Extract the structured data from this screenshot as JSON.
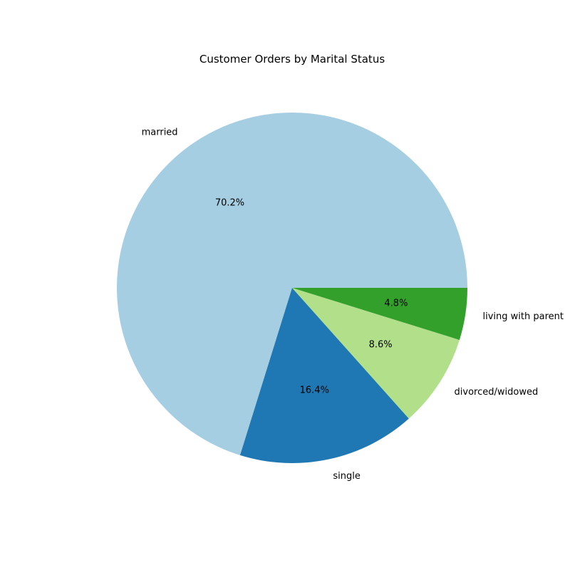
{
  "chart_data": {
    "type": "pie",
    "title": "Customer Orders by Marital Status",
    "slices": [
      {
        "label": "married",
        "value": 70.2,
        "pct_label": "70.2%",
        "color": "#a6cee3"
      },
      {
        "label": "single",
        "value": 16.4,
        "pct_label": "16.4%",
        "color": "#1f78b4"
      },
      {
        "label": "divorced/widowed",
        "value": 8.6,
        "pct_label": "8.6%",
        "color": "#b2df8a"
      },
      {
        "label": "living with parent",
        "value": 4.8,
        "pct_label": "4.8%",
        "color": "#33a02c"
      }
    ],
    "start_angle_deg": 0,
    "direction": "counterclockwise"
  }
}
